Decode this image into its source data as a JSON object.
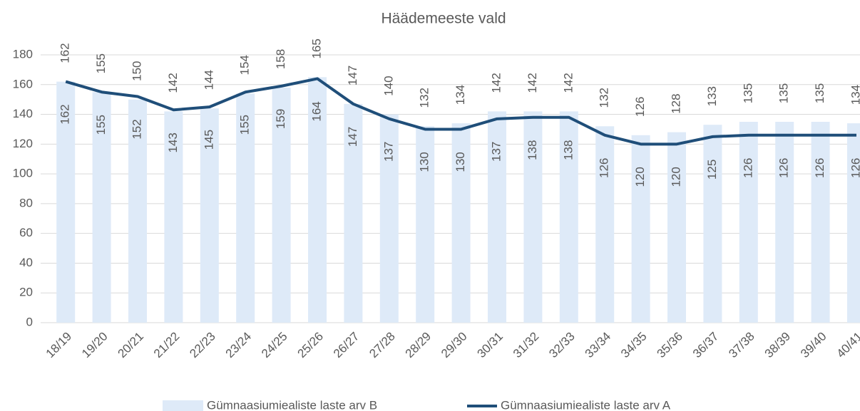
{
  "chart_data": {
    "type": "combo",
    "title": "Häädemeeste vald",
    "categories": [
      "18/19",
      "19/20",
      "20/21",
      "21/22",
      "22/23",
      "23/24",
      "24/25",
      "25/26",
      "26/27",
      "27/28",
      "28/29",
      "29/30",
      "30/31",
      "31/32",
      "32/33",
      "33/34",
      "34/35",
      "35/36",
      "36/37",
      "37/38",
      "38/39",
      "39/40",
      "40/41"
    ],
    "series": [
      {
        "name": "Gümnaasiumiealiste laste arv B",
        "type": "bar",
        "color": "#deeaf8",
        "values": [
          162,
          155,
          150,
          142,
          144,
          154,
          158,
          165,
          147,
          140,
          132,
          134,
          142,
          142,
          142,
          132,
          126,
          128,
          133,
          135,
          135,
          135,
          134
        ]
      },
      {
        "name": "Gümnaasiumiealiste laste arv A",
        "type": "line",
        "color": "#1f4e79",
        "values": [
          162,
          155,
          152,
          143,
          145,
          155,
          159,
          164,
          147,
          137,
          130,
          130,
          137,
          138,
          138,
          126,
          120,
          120,
          125,
          126,
          126,
          126,
          126
        ]
      }
    ],
    "ylim": [
      0,
      180
    ],
    "yticks": [
      0,
      20,
      40,
      60,
      80,
      100,
      120,
      140,
      160,
      180
    ],
    "grid": true,
    "legend": "bottom"
  }
}
